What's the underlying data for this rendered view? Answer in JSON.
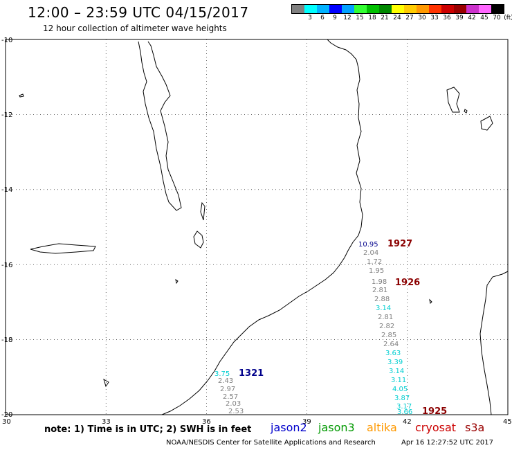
{
  "header": {
    "title": "12:00 – 23:59 UTC 04/15/2017",
    "subtitle": "12 hour collection of altimeter wave heights"
  },
  "legend": {
    "unit": "(ft)",
    "items": [
      {
        "label": "",
        "color": "#808080"
      },
      {
        "label": "3",
        "color": "#00ffff"
      },
      {
        "label": "6",
        "color": "#00b2ff"
      },
      {
        "label": "9",
        "color": "#0000ff"
      },
      {
        "label": "12",
        "color": "#00a0ff"
      },
      {
        "label": "15",
        "color": "#33ff33"
      },
      {
        "label": "18",
        "color": "#00c000"
      },
      {
        "label": "21",
        "color": "#008800"
      },
      {
        "label": "24",
        "color": "#ffff00"
      },
      {
        "label": "27",
        "color": "#ffcc00"
      },
      {
        "label": "30",
        "color": "#ff9900"
      },
      {
        "label": "33",
        "color": "#ff3300"
      },
      {
        "label": "36",
        "color": "#cc0000"
      },
      {
        "label": "39",
        "color": "#990000"
      },
      {
        "label": "42",
        "color": "#cc33cc"
      },
      {
        "label": "45",
        "color": "#ff66ff"
      },
      {
        "label": "70",
        "color": "#000000"
      }
    ]
  },
  "map": {
    "lat_labels": [
      "-10",
      "-12",
      "-14",
      "-16",
      "-18",
      "-20"
    ],
    "lon_labels": [
      "30",
      "33",
      "36",
      "39",
      "42",
      "45"
    ],
    "lon_range": [
      30,
      45
    ],
    "lat_range": [
      -10,
      -20
    ],
    "gridlines": "dashed"
  },
  "wave_heights": [
    {
      "value": "10.95",
      "color": "#00008b"
    },
    {
      "value": "2.04",
      "color": "#808080"
    },
    {
      "value": "1.72",
      "color": "#808080"
    },
    {
      "value": "1.95",
      "color": "#808080"
    },
    {
      "value": "1.98",
      "color": "#808080"
    },
    {
      "value": "2.81",
      "color": "#808080"
    },
    {
      "value": "2.88",
      "color": "#808080"
    },
    {
      "value": "3.14",
      "color": "#00ced1"
    },
    {
      "value": "2.81",
      "color": "#808080"
    },
    {
      "value": "2.82",
      "color": "#808080"
    },
    {
      "value": "2.85",
      "color": "#808080"
    },
    {
      "value": "2.64",
      "color": "#808080"
    },
    {
      "value": "3.63",
      "color": "#00ced1"
    },
    {
      "value": "3.39",
      "color": "#00ced1"
    },
    {
      "value": "3.14",
      "color": "#00ced1"
    },
    {
      "value": "3.11",
      "color": "#00ced1"
    },
    {
      "value": "4.05",
      "color": "#00ced1"
    },
    {
      "value": "3.87",
      "color": "#00ced1"
    },
    {
      "value": "3.17",
      "color": "#00ced1"
    },
    {
      "value": "3.66",
      "color": "#00ced1"
    },
    {
      "value": "3.75",
      "color": "#00ced1"
    },
    {
      "value": "2.43",
      "color": "#808080"
    },
    {
      "value": "2.97",
      "color": "#808080"
    },
    {
      "value": "2.57",
      "color": "#808080"
    },
    {
      "value": "2.03",
      "color": "#808080"
    },
    {
      "value": "2.53",
      "color": "#808080"
    }
  ],
  "pass_labels": [
    {
      "text": "1927",
      "color": "#8b0000"
    },
    {
      "text": "1926",
      "color": "#8b0000"
    },
    {
      "text": "1925",
      "color": "#8b0000"
    },
    {
      "text": "1321",
      "color": "#00008b"
    }
  ],
  "footer": {
    "note": "note:  1) Time is in UTC;  2) SWH is in feet",
    "satellites": [
      {
        "name": "jason2",
        "color": "#0000cc"
      },
      {
        "name": "jason3",
        "color": "#009900"
      },
      {
        "name": "altika",
        "color": "#ff9900"
      },
      {
        "name": "cryosat",
        "color": "#cc0000"
      },
      {
        "name": "s3a",
        "color": "#990000"
      }
    ],
    "credit": "NOAA/NESDIS Center for Satellite Applications and Research",
    "timestamp": "Apr 16 12:27:52 UTC 2017"
  }
}
